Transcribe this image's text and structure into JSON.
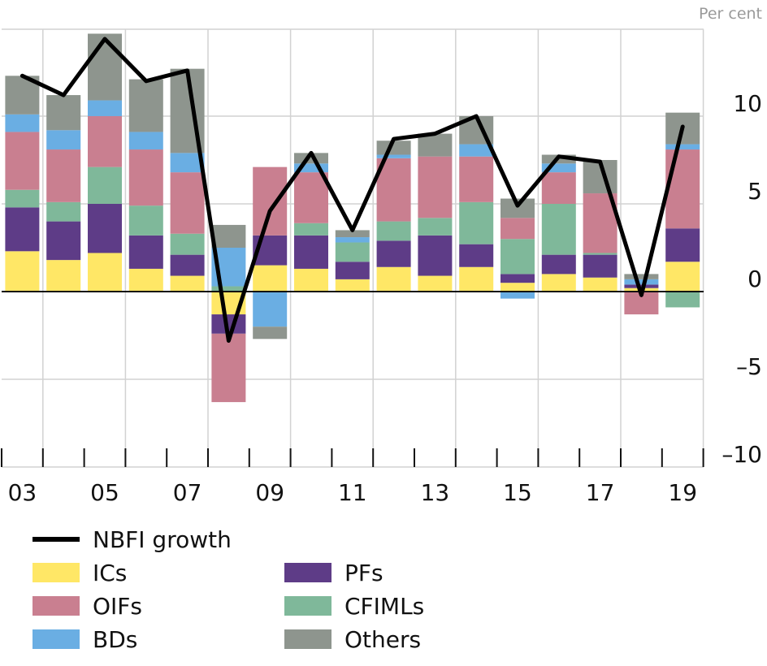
{
  "chart_data": {
    "type": "stacked-bar-with-line",
    "unit_label": "Per cent",
    "ylim": [
      -10,
      15
    ],
    "y_ticks": [
      10,
      5,
      0,
      -5,
      -10
    ],
    "y_tick_labels": [
      "10",
      "5",
      "0",
      "–5",
      "–10"
    ],
    "x_tick_labels": [
      "03",
      "05",
      "07",
      "09",
      "11",
      "13",
      "15",
      "17",
      "19"
    ],
    "categories": [
      "2003",
      "2004",
      "2005",
      "2006",
      "2007",
      "2008",
      "2009",
      "2010",
      "2011",
      "2012",
      "2013",
      "2014",
      "2015",
      "2016",
      "2017",
      "2018",
      "2019"
    ],
    "series": [
      {
        "name": "ICs",
        "color": "#ffe766",
        "values": [
          2.3,
          1.8,
          2.2,
          1.3,
          0.9,
          -1.3,
          1.5,
          1.3,
          0.7,
          1.4,
          0.9,
          1.4,
          0.5,
          1.0,
          0.8,
          0.2,
          1.7
        ]
      },
      {
        "name": "PFs",
        "color": "#5e3c87",
        "values": [
          2.5,
          2.2,
          2.8,
          1.9,
          1.2,
          -1.1,
          1.7,
          1.9,
          1.0,
          1.5,
          2.3,
          1.3,
          0.5,
          1.1,
          1.3,
          0.2,
          1.9
        ]
      },
      {
        "name": "CFIMLs",
        "color": "#7fb89a",
        "values": [
          1.0,
          1.1,
          2.1,
          1.7,
          1.2,
          0.3,
          0.0,
          0.7,
          1.1,
          1.1,
          1.0,
          2.4,
          2.0,
          2.9,
          0.1,
          0.0,
          -0.9
        ]
      },
      {
        "name": "OIFs",
        "color": "#c97f90",
        "values": [
          3.3,
          3.0,
          2.9,
          3.2,
          3.5,
          -3.9,
          3.9,
          2.9,
          0.0,
          3.6,
          3.5,
          2.6,
          1.2,
          1.8,
          3.4,
          -1.3,
          4.5
        ]
      },
      {
        "name": "BDs",
        "color": "#6aaee3",
        "values": [
          1.0,
          1.1,
          0.9,
          1.0,
          1.1,
          2.2,
          -2.0,
          0.5,
          0.3,
          0.2,
          0.0,
          0.7,
          -0.4,
          0.5,
          0.0,
          0.3,
          0.3
        ]
      },
      {
        "name": "Others",
        "color": "#8e958e",
        "values": [
          2.2,
          2.0,
          3.8,
          3.0,
          4.8,
          1.3,
          -0.7,
          0.6,
          0.4,
          0.8,
          1.3,
          1.6,
          1.1,
          0.5,
          1.9,
          0.3,
          1.8
        ]
      }
    ],
    "line": {
      "name": "NBFI growth",
      "color": "#000000",
      "values": [
        12.3,
        11.2,
        14.4,
        12.0,
        12.6,
        -2.8,
        4.6,
        7.9,
        3.5,
        8.7,
        9.0,
        10.0,
        4.9,
        7.7,
        7.4,
        -0.2,
        9.4
      ]
    },
    "legend": [
      {
        "label": "NBFI growth",
        "kind": "line",
        "color": "#000000"
      },
      {
        "label": "ICs",
        "kind": "box",
        "color": "#ffe766"
      },
      {
        "label": "OIFs",
        "kind": "box",
        "color": "#c97f90"
      },
      {
        "label": "BDs",
        "kind": "box",
        "color": "#6aaee3"
      },
      {
        "label": "PFs",
        "kind": "box",
        "color": "#5e3c87"
      },
      {
        "label": "CFIMLs",
        "kind": "box",
        "color": "#7fb89a"
      },
      {
        "label": "Others",
        "kind": "box",
        "color": "#8e958e"
      }
    ]
  }
}
